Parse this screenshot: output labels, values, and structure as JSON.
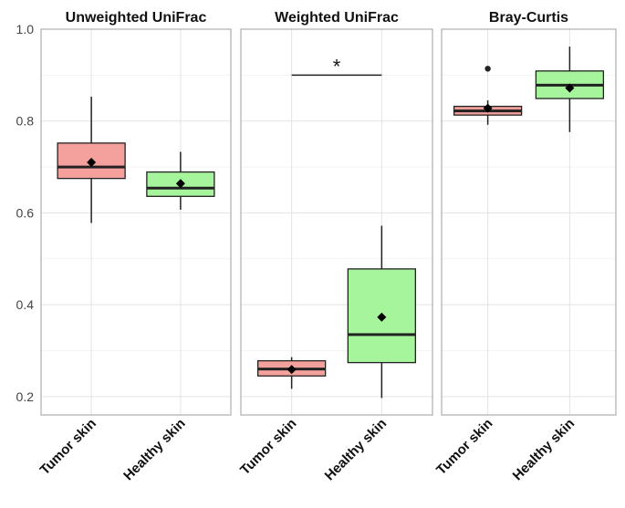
{
  "chart_data": {
    "type": "boxplot",
    "y_ticks": [
      "0.2",
      "0.4",
      "0.6",
      "0.8",
      "1.0"
    ],
    "y_tick_values": [
      0.2,
      0.4,
      0.6,
      0.8,
      1.0
    ],
    "ylim": [
      0.16,
      1.0
    ],
    "grid": true,
    "categories": [
      "Tumor skin",
      "Healthy skin"
    ],
    "colors": {
      "Tumor skin": "#f4a09d",
      "Healthy skin": "#a6f59c"
    },
    "panels": [
      {
        "title": "Unweighted UniFrac",
        "boxes": [
          {
            "category": "Tumor skin",
            "min": 0.578,
            "q1": 0.675,
            "median": 0.7,
            "q3": 0.752,
            "max": 0.853,
            "mean": 0.71,
            "outliers": []
          },
          {
            "category": "Healthy skin",
            "min": 0.607,
            "q1": 0.636,
            "median": 0.654,
            "q3": 0.689,
            "max": 0.733,
            "mean": 0.664,
            "outliers": []
          }
        ]
      },
      {
        "title": "Weighted UniFrac",
        "boxes": [
          {
            "category": "Tumor skin",
            "min": 0.217,
            "q1": 0.245,
            "median": 0.26,
            "q3": 0.278,
            "max": 0.286,
            "mean": 0.259,
            "outliers": []
          },
          {
            "category": "Healthy skin",
            "min": 0.197,
            "q1": 0.274,
            "median": 0.335,
            "q3": 0.478,
            "max": 0.572,
            "mean": 0.373,
            "outliers": []
          }
        ],
        "significance": {
          "label": "*",
          "y": 0.9
        }
      },
      {
        "title": "Bray-Curtis",
        "boxes": [
          {
            "category": "Tumor skin",
            "min": 0.792,
            "q1": 0.813,
            "median": 0.822,
            "q3": 0.832,
            "max": 0.845,
            "mean": 0.828,
            "outliers": [
              0.914
            ]
          },
          {
            "category": "Healthy skin",
            "min": 0.776,
            "q1": 0.849,
            "median": 0.878,
            "q3": 0.909,
            "max": 0.962,
            "mean": 0.872,
            "outliers": []
          }
        ]
      }
    ]
  }
}
